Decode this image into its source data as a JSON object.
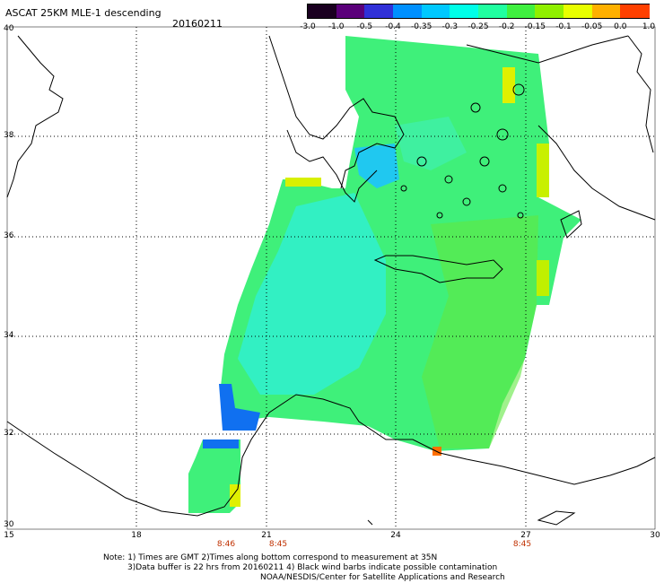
{
  "header": {
    "title": "ASCAT 25KM MLE-1 descending",
    "date": "20160211"
  },
  "colorbar": {
    "labels": [
      "-3.0",
      "-1.0",
      "-0.5",
      "-0.4",
      "-0.35",
      "-0.3",
      "-0.25",
      "-0.2",
      "-0.15",
      "-0.1",
      "-0.05",
      "0.0",
      "1.0"
    ],
    "colors": [
      "#1a0020",
      "#5a007a",
      "#3030d8",
      "#0090ff",
      "#00c8ff",
      "#00ffe8",
      "#20ffa0",
      "#40f040",
      "#90f000",
      "#e8ff00",
      "#ffb000",
      "#ff4000"
    ]
  },
  "axes": {
    "lat_labels": [
      "40",
      "38",
      "36",
      "34",
      "32",
      "30"
    ],
    "lon_labels": [
      "15",
      "18",
      "21",
      "24",
      "27",
      "30"
    ],
    "times": [
      "8:46",
      "8:45",
      "8:45"
    ]
  },
  "notes": {
    "line1": "Note: 1) Times are GMT 2)Times along bottom correspond to measurement at 35N",
    "line2": "3)Data buffer is 22 hrs from 20160211 4) Black wind barbs indicate possible contamination",
    "line3": "NOAA/NESDIS/Center for Satellite Applications and Research"
  },
  "colors": {
    "swath_main": "#3ff07a",
    "swath_cyan": "#2af0e0",
    "swath_blue": "#1080ff",
    "yellow": "#e8ff00"
  }
}
